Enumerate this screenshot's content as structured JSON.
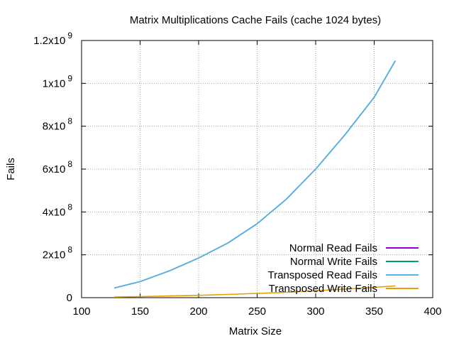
{
  "chart_data": {
    "type": "line",
    "title": "Matrix Multiplications Cache Fails (cache 1024 bytes)",
    "xlabel": "Matrix Size",
    "ylabel": "Fails",
    "xlim": [
      100,
      400
    ],
    "ylim": [
      0,
      1200000000
    ],
    "grid": true,
    "legend_position": "bottom-right",
    "x_ticks": [
      {
        "value": 100,
        "label": "100"
      },
      {
        "value": 150,
        "label": "150"
      },
      {
        "value": 200,
        "label": "200"
      },
      {
        "value": 250,
        "label": "250"
      },
      {
        "value": 300,
        "label": "300"
      },
      {
        "value": 350,
        "label": "350"
      },
      {
        "value": 400,
        "label": "400"
      }
    ],
    "y_ticks": [
      {
        "value": 0,
        "label": "0",
        "exp": ""
      },
      {
        "value": 200000000,
        "label": "2x10",
        "exp": "8"
      },
      {
        "value": 400000000,
        "label": "4x10",
        "exp": "8"
      },
      {
        "value": 600000000,
        "label": "6x10",
        "exp": "8"
      },
      {
        "value": 800000000,
        "label": "8x10",
        "exp": "8"
      },
      {
        "value": 1000000000,
        "label": "1x10",
        "exp": "9"
      },
      {
        "value": 1200000000,
        "label": "1.2x10",
        "exp": "9"
      }
    ],
    "x": [
      128,
      150,
      175,
      200,
      225,
      250,
      275,
      300,
      325,
      350,
      368
    ],
    "series": [
      {
        "name": "Normal Read Fails",
        "color": "#9400d3",
        "values": [
          45000000,
          75000000,
          125000000,
          185000000,
          255000000,
          345000000,
          460000000,
          600000000,
          760000000,
          935000000,
          1105000000
        ]
      },
      {
        "name": "Normal Write Fails",
        "color": "#009e73",
        "values": [
          45000000,
          75000000,
          125000000,
          185000000,
          255000000,
          345000000,
          460000000,
          600000000,
          760000000,
          935000000,
          1105000000
        ]
      },
      {
        "name": "Transposed Read Fails",
        "color": "#56b4e9",
        "values": [
          45000000,
          75000000,
          125000000,
          185000000,
          255000000,
          345000000,
          460000000,
          600000000,
          760000000,
          935000000,
          1105000000
        ]
      },
      {
        "name": "Transposed Write Fails",
        "color": "#e69f00",
        "values": [
          3000000,
          5000000,
          8000000,
          11000000,
          15000000,
          20000000,
          25000000,
          32000000,
          40000000,
          48000000,
          55000000
        ]
      }
    ]
  }
}
